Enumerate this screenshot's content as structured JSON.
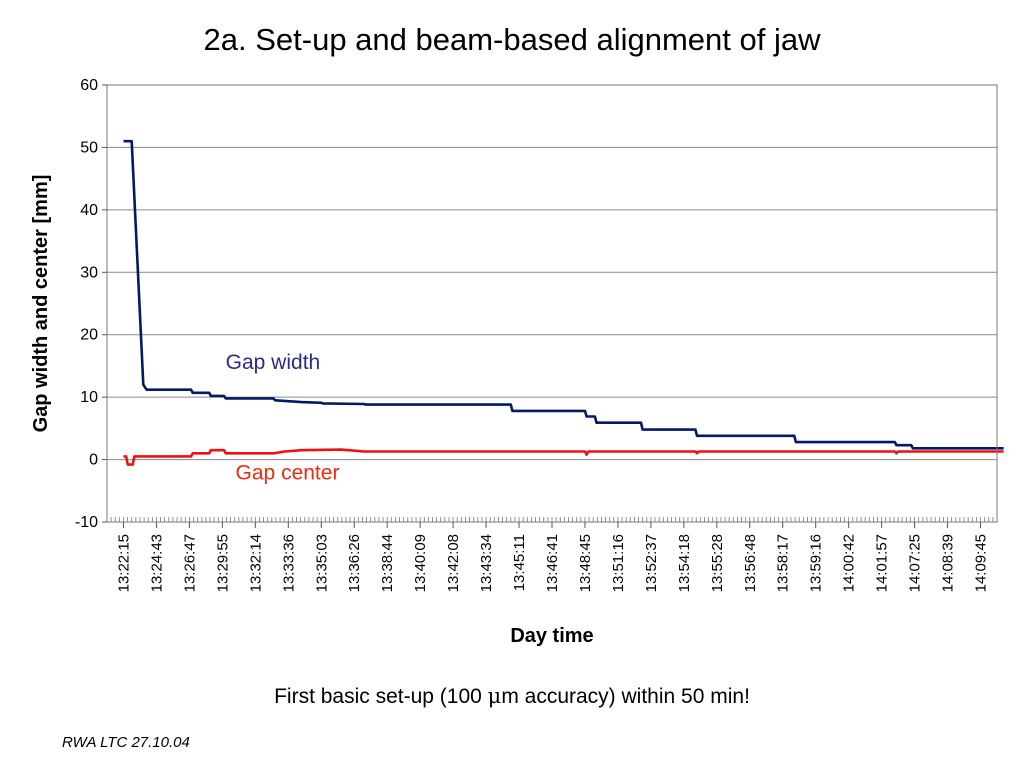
{
  "slide": {
    "title": "2a. Set-up and beam-based alignment of jaw",
    "caption_before": "First basic set-up (100 ",
    "caption_mu": "μ",
    "caption_after": "m accuracy) within 50 min!",
    "footer": "RWA LTC 27.10.04"
  },
  "colors": {
    "gap_width": "#001a66",
    "gap_center": "#ee1111",
    "gap_width_label": "#2a2a8c",
    "gap_center_label": "#e82c0c",
    "grid": "#8a8a8a"
  },
  "chart_data": {
    "type": "line",
    "title": "",
    "xlabel": "Day time",
    "ylabel": "Gap width and center [mm]",
    "ylim": [
      -10,
      60
    ],
    "yticks": [
      -10,
      0,
      10,
      20,
      30,
      40,
      50,
      60
    ],
    "grid": true,
    "x_categories": [
      "13:22:15",
      "13:24:43",
      "13:26:47",
      "13:29:55",
      "13:32:14",
      "13:33:36",
      "13:35:03",
      "13:36:26",
      "13:38:44",
      "13:40:09",
      "13:42:08",
      "13:43:34",
      "13:45:11",
      "13:46:41",
      "13:48:45",
      "13:51:16",
      "13:52:37",
      "13:54:18",
      "13:55:28",
      "13:56:48",
      "13:58:17",
      "13:59:16",
      "14:00:42",
      "14:01:57",
      "14:07:25",
      "14:08:39",
      "14:09:45"
    ],
    "series": [
      {
        "name": "Gap width",
        "color": "#001a66",
        "points": [
          [
            0.0,
            51
          ],
          [
            0.25,
            51
          ],
          [
            0.6,
            12
          ],
          [
            0.7,
            11.2
          ],
          [
            2.05,
            11.2
          ],
          [
            2.1,
            10.7
          ],
          [
            2.6,
            10.7
          ],
          [
            2.65,
            10.2
          ],
          [
            3.05,
            10.2
          ],
          [
            3.1,
            9.8
          ],
          [
            4.55,
            9.8
          ],
          [
            4.6,
            9.5
          ],
          [
            5.4,
            9.2
          ],
          [
            6.0,
            9.1
          ],
          [
            6.05,
            9.0
          ],
          [
            7.3,
            8.9
          ],
          [
            7.35,
            8.8
          ],
          [
            11.75,
            8.8
          ],
          [
            11.8,
            7.8
          ],
          [
            14.0,
            7.8
          ],
          [
            14.05,
            6.9
          ],
          [
            14.3,
            6.9
          ],
          [
            14.35,
            5.9
          ],
          [
            15.7,
            5.9
          ],
          [
            15.75,
            4.8
          ],
          [
            17.35,
            4.8
          ],
          [
            17.4,
            3.8
          ],
          [
            20.35,
            3.8
          ],
          [
            20.4,
            2.8
          ],
          [
            23.4,
            2.8
          ],
          [
            23.45,
            2.3
          ],
          [
            23.9,
            2.3
          ],
          [
            23.95,
            1.8
          ],
          [
            26.7,
            1.8
          ]
        ]
      },
      {
        "name": "Gap center",
        "color": "#ee1111",
        "points": [
          [
            0.0,
            0.5
          ],
          [
            0.08,
            0.5
          ],
          [
            0.13,
            -0.8
          ],
          [
            0.28,
            -0.8
          ],
          [
            0.33,
            0.5
          ],
          [
            2.05,
            0.5
          ],
          [
            2.1,
            1.0
          ],
          [
            2.6,
            1.0
          ],
          [
            2.65,
            1.5
          ],
          [
            3.05,
            1.5
          ],
          [
            3.1,
            1.0
          ],
          [
            4.55,
            1.0
          ],
          [
            4.9,
            1.3
          ],
          [
            5.4,
            1.5
          ],
          [
            6.6,
            1.6
          ],
          [
            7.3,
            1.3
          ],
          [
            14.0,
            1.3
          ],
          [
            14.05,
            0.8
          ],
          [
            14.1,
            1.3
          ],
          [
            17.35,
            1.3
          ],
          [
            17.4,
            1.0
          ],
          [
            17.45,
            1.3
          ],
          [
            23.4,
            1.3
          ],
          [
            23.45,
            1.0
          ],
          [
            23.5,
            1.3
          ],
          [
            26.7,
            1.3
          ]
        ]
      }
    ],
    "annotations": [
      {
        "text": "Gap width",
        "x": 3.1,
        "y": 14.5,
        "color": "#2a2a8c"
      },
      {
        "text": "Gap center",
        "x": 3.4,
        "y": -3.2,
        "color": "#e82c0c"
      }
    ]
  }
}
